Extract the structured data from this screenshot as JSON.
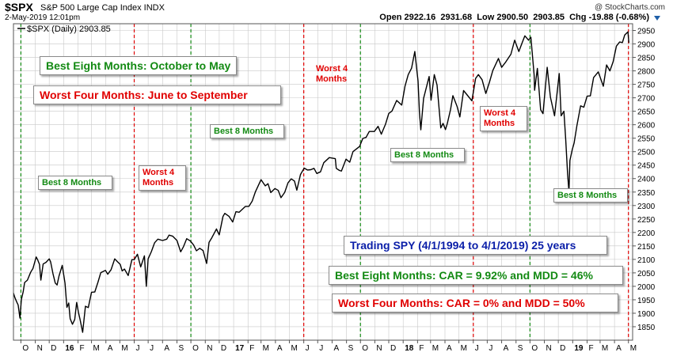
{
  "header": {
    "symbol": "$SPX",
    "subtitle": "S&P 500 Large Cap Index  INDX",
    "datetime": "2-May-2019 12:01pm",
    "copyright": "@ StockCharts.com",
    "quote": {
      "open_label": "Open",
      "open": "2922.16",
      "high": "2931.68",
      "low_label": "Low",
      "low": "2900.50",
      "last": "2903.85",
      "chg_label": "Chg",
      "chg": "-19.88 (-0.68%)"
    }
  },
  "legend": {
    "text": "$SPX (Daily) 2903.85"
  },
  "annotations": {
    "best_eight_title": "Best Eight Months: October to May",
    "worst_four_title": "Worst Four Months: June to September",
    "best8_1": "Best 8 Months",
    "worst4_1_line1": "Worst 4",
    "worst4_1_line2": "Months",
    "best8_2": "Best 8 Months",
    "worst4_2_line1": "Worst 4",
    "worst4_2_line2": "Months",
    "best8_3": "Best 8 Months",
    "worst4_3_line1": "Worst 4",
    "worst4_3_line2": "Months",
    "best8_4": "Best 8 Months",
    "trading_spy": "Trading SPY (4/1/1994 to 4/1/2019) 25 years",
    "best_stats": "Best Eight Months: CAR = 9.92% and MDD = 46%",
    "worst_stats": "Worst Four Months: CAR = 0% and MDD = 50%"
  },
  "colors": {
    "green": "#138a13",
    "red": "#e00000",
    "blue": "#0a1ea8",
    "line": "#000000",
    "grid": "#c8c8c8"
  },
  "chart_data": {
    "type": "line",
    "title": "$SPX (Daily) 2903.85",
    "ylim": [
      1800,
      2975
    ],
    "y_ticks": [
      1850,
      1900,
      1950,
      2000,
      2050,
      2100,
      2150,
      2200,
      2250,
      2300,
      2350,
      2400,
      2450,
      2500,
      2550,
      2600,
      2650,
      2700,
      2750,
      2800,
      2850,
      2900,
      2950
    ],
    "x_start": "2015-09-15",
    "x_end": "2019-05-10",
    "x_ticks": [
      {
        "date": "2015-10-01",
        "label": "O"
      },
      {
        "date": "2015-11-01",
        "label": "N"
      },
      {
        "date": "2015-12-01",
        "label": "D"
      },
      {
        "date": "2016-01-01",
        "label": "16"
      },
      {
        "date": "2016-02-01",
        "label": "F"
      },
      {
        "date": "2016-03-01",
        "label": "M"
      },
      {
        "date": "2016-04-01",
        "label": "A"
      },
      {
        "date": "2016-05-01",
        "label": "M"
      },
      {
        "date": "2016-06-01",
        "label": "J"
      },
      {
        "date": "2016-07-01",
        "label": "J"
      },
      {
        "date": "2016-08-01",
        "label": "A"
      },
      {
        "date": "2016-09-01",
        "label": "S"
      },
      {
        "date": "2016-10-01",
        "label": "O"
      },
      {
        "date": "2016-11-01",
        "label": "N"
      },
      {
        "date": "2016-12-01",
        "label": "D"
      },
      {
        "date": "2017-01-01",
        "label": "17"
      },
      {
        "date": "2017-02-01",
        "label": "F"
      },
      {
        "date": "2017-03-01",
        "label": "M"
      },
      {
        "date": "2017-04-01",
        "label": "A"
      },
      {
        "date": "2017-05-01",
        "label": "M"
      },
      {
        "date": "2017-06-01",
        "label": "J"
      },
      {
        "date": "2017-07-01",
        "label": "J"
      },
      {
        "date": "2017-08-01",
        "label": "A"
      },
      {
        "date": "2017-09-01",
        "label": "S"
      },
      {
        "date": "2017-10-01",
        "label": "O"
      },
      {
        "date": "2017-11-01",
        "label": "N"
      },
      {
        "date": "2017-12-01",
        "label": "D"
      },
      {
        "date": "2018-01-01",
        "label": "18"
      },
      {
        "date": "2018-02-01",
        "label": "F"
      },
      {
        "date": "2018-03-01",
        "label": "M"
      },
      {
        "date": "2018-04-01",
        "label": "A"
      },
      {
        "date": "2018-05-01",
        "label": "M"
      },
      {
        "date": "2018-06-01",
        "label": "J"
      },
      {
        "date": "2018-07-01",
        "label": "J"
      },
      {
        "date": "2018-08-01",
        "label": "A"
      },
      {
        "date": "2018-09-01",
        "label": "S"
      },
      {
        "date": "2018-10-01",
        "label": "O"
      },
      {
        "date": "2018-11-01",
        "label": "N"
      },
      {
        "date": "2018-12-01",
        "label": "D"
      },
      {
        "date": "2019-01-01",
        "label": "19"
      },
      {
        "date": "2019-02-01",
        "label": "F"
      },
      {
        "date": "2019-03-01",
        "label": "M"
      },
      {
        "date": "2019-04-01",
        "label": "A"
      },
      {
        "date": "2019-05-01",
        "label": "M"
      }
    ],
    "bold_tick_labels": [
      "16",
      "17",
      "18",
      "19"
    ],
    "season_lines": [
      {
        "date": "2015-10-01",
        "color": "green"
      },
      {
        "date": "2016-06-01",
        "color": "red"
      },
      {
        "date": "2016-10-01",
        "color": "green"
      },
      {
        "date": "2017-06-01",
        "color": "red"
      },
      {
        "date": "2017-10-01",
        "color": "green"
      },
      {
        "date": "2018-06-01",
        "color": "red"
      },
      {
        "date": "2018-10-01",
        "color": "green"
      },
      {
        "date": "2019-05-01",
        "color": "red"
      }
    ],
    "series": [
      {
        "name": "$SPX (Daily)",
        "points": [
          [
            "2015-09-15",
            1975
          ],
          [
            "2015-09-18",
            1958
          ],
          [
            "2015-09-22",
            1942
          ],
          [
            "2015-09-25",
            1931
          ],
          [
            "2015-09-29",
            1882
          ],
          [
            "2015-10-02",
            1951
          ],
          [
            "2015-10-06",
            1980
          ],
          [
            "2015-10-09",
            2014
          ],
          [
            "2015-10-15",
            2023
          ],
          [
            "2015-10-22",
            2052
          ],
          [
            "2015-10-27",
            2066
          ],
          [
            "2015-11-03",
            2109
          ],
          [
            "2015-11-06",
            2099
          ],
          [
            "2015-11-10",
            2081
          ],
          [
            "2015-11-13",
            2023
          ],
          [
            "2015-11-18",
            2083
          ],
          [
            "2015-11-24",
            2089
          ],
          [
            "2015-12-01",
            2102
          ],
          [
            "2015-12-04",
            2091
          ],
          [
            "2015-12-09",
            2047
          ],
          [
            "2015-12-14",
            2012
          ],
          [
            "2015-12-18",
            2005
          ],
          [
            "2015-12-22",
            2038
          ],
          [
            "2015-12-29",
            2078
          ],
          [
            "2016-01-04",
            2012
          ],
          [
            "2016-01-08",
            1922
          ],
          [
            "2016-01-12",
            1938
          ],
          [
            "2016-01-15",
            1880
          ],
          [
            "2016-01-20",
            1859
          ],
          [
            "2016-01-25",
            1877
          ],
          [
            "2016-01-29",
            1940
          ],
          [
            "2016-02-02",
            1903
          ],
          [
            "2016-02-05",
            1880
          ],
          [
            "2016-02-11",
            1829
          ],
          [
            "2016-02-17",
            1926
          ],
          [
            "2016-02-23",
            1921
          ],
          [
            "2016-03-01",
            1978
          ],
          [
            "2016-03-08",
            1979
          ],
          [
            "2016-03-15",
            2016
          ],
          [
            "2016-03-21",
            2051
          ],
          [
            "2016-03-31",
            2059
          ],
          [
            "2016-04-05",
            2045
          ],
          [
            "2016-04-12",
            2061
          ],
          [
            "2016-04-20",
            2102
          ],
          [
            "2016-04-26",
            2091
          ],
          [
            "2016-05-02",
            2081
          ],
          [
            "2016-05-06",
            2057
          ],
          [
            "2016-05-11",
            2064
          ],
          [
            "2016-05-19",
            2040
          ],
          [
            "2016-05-27",
            2099
          ],
          [
            "2016-06-01",
            2099
          ],
          [
            "2016-06-08",
            2119
          ],
          [
            "2016-06-15",
            2072
          ],
          [
            "2016-06-23",
            2113
          ],
          [
            "2016-06-27",
            2000
          ],
          [
            "2016-07-01",
            2102
          ],
          [
            "2016-07-08",
            2129
          ],
          [
            "2016-07-15",
            2162
          ],
          [
            "2016-07-22",
            2175
          ],
          [
            "2016-08-01",
            2170
          ],
          [
            "2016-08-10",
            2175
          ],
          [
            "2016-08-15",
            2190
          ],
          [
            "2016-08-23",
            2186
          ],
          [
            "2016-09-01",
            2170
          ],
          [
            "2016-09-09",
            2128
          ],
          [
            "2016-09-15",
            2147
          ],
          [
            "2016-09-22",
            2177
          ],
          [
            "2016-09-30",
            2168
          ],
          [
            "2016-10-07",
            2153
          ],
          [
            "2016-10-13",
            2132
          ],
          [
            "2016-10-20",
            2141
          ],
          [
            "2016-10-27",
            2133
          ],
          [
            "2016-11-04",
            2085
          ],
          [
            "2016-11-09",
            2163
          ],
          [
            "2016-11-15",
            2180
          ],
          [
            "2016-11-25",
            2213
          ],
          [
            "2016-12-01",
            2191
          ],
          [
            "2016-12-09",
            2259
          ],
          [
            "2016-12-13",
            2271
          ],
          [
            "2016-12-22",
            2260
          ],
          [
            "2016-12-30",
            2239
          ],
          [
            "2017-01-06",
            2277
          ],
          [
            "2017-01-13",
            2275
          ],
          [
            "2017-01-26",
            2296
          ],
          [
            "2017-02-03",
            2297
          ],
          [
            "2017-02-10",
            2316
          ],
          [
            "2017-02-17",
            2351
          ],
          [
            "2017-03-01",
            2396
          ],
          [
            "2017-03-10",
            2373
          ],
          [
            "2017-03-16",
            2381
          ],
          [
            "2017-03-22",
            2348
          ],
          [
            "2017-03-31",
            2363
          ],
          [
            "2017-04-07",
            2356
          ],
          [
            "2017-04-13",
            2329
          ],
          [
            "2017-04-21",
            2349
          ],
          [
            "2017-04-28",
            2384
          ],
          [
            "2017-05-05",
            2399
          ],
          [
            "2017-05-12",
            2391
          ],
          [
            "2017-05-17",
            2357
          ],
          [
            "2017-05-25",
            2415
          ],
          [
            "2017-06-02",
            2439
          ],
          [
            "2017-06-09",
            2432
          ],
          [
            "2017-06-16",
            2433
          ],
          [
            "2017-06-23",
            2438
          ],
          [
            "2017-06-29",
            2419
          ],
          [
            "2017-07-07",
            2425
          ],
          [
            "2017-07-14",
            2459
          ],
          [
            "2017-07-26",
            2478
          ],
          [
            "2017-08-08",
            2474
          ],
          [
            "2017-08-10",
            2438
          ],
          [
            "2017-08-17",
            2430
          ],
          [
            "2017-08-21",
            2428
          ],
          [
            "2017-08-31",
            2472
          ],
          [
            "2017-09-08",
            2461
          ],
          [
            "2017-09-15",
            2500
          ],
          [
            "2017-09-29",
            2519
          ],
          [
            "2017-10-06",
            2549
          ],
          [
            "2017-10-13",
            2553
          ],
          [
            "2017-10-20",
            2575
          ],
          [
            "2017-10-31",
            2575
          ],
          [
            "2017-11-08",
            2594
          ],
          [
            "2017-11-15",
            2565
          ],
          [
            "2017-11-24",
            2602
          ],
          [
            "2017-12-01",
            2642
          ],
          [
            "2017-12-08",
            2651
          ],
          [
            "2017-12-18",
            2690
          ],
          [
            "2017-12-29",
            2673
          ],
          [
            "2018-01-05",
            2743
          ],
          [
            "2018-01-12",
            2786
          ],
          [
            "2018-01-19",
            2810
          ],
          [
            "2018-01-26",
            2872
          ],
          [
            "2018-02-02",
            2762
          ],
          [
            "2018-02-05",
            2648
          ],
          [
            "2018-02-08",
            2581
          ],
          [
            "2018-02-14",
            2698
          ],
          [
            "2018-02-26",
            2779
          ],
          [
            "2018-03-02",
            2691
          ],
          [
            "2018-03-09",
            2786
          ],
          [
            "2018-03-15",
            2747
          ],
          [
            "2018-03-23",
            2588
          ],
          [
            "2018-03-28",
            2605
          ],
          [
            "2018-04-02",
            2582
          ],
          [
            "2018-04-06",
            2604
          ],
          [
            "2018-04-13",
            2656
          ],
          [
            "2018-04-18",
            2708
          ],
          [
            "2018-04-27",
            2669
          ],
          [
            "2018-05-03",
            2629
          ],
          [
            "2018-05-11",
            2727
          ],
          [
            "2018-05-18",
            2712
          ],
          [
            "2018-05-29",
            2689
          ],
          [
            "2018-06-06",
            2772
          ],
          [
            "2018-06-12",
            2786
          ],
          [
            "2018-06-20",
            2767
          ],
          [
            "2018-06-28",
            2716
          ],
          [
            "2018-07-06",
            2759
          ],
          [
            "2018-07-13",
            2801
          ],
          [
            "2018-07-25",
            2846
          ],
          [
            "2018-08-01",
            2813
          ],
          [
            "2018-08-10",
            2833
          ],
          [
            "2018-08-21",
            2862
          ],
          [
            "2018-08-29",
            2914
          ],
          [
            "2018-09-07",
            2872
          ],
          [
            "2018-09-14",
            2904
          ],
          [
            "2018-09-20",
            2930
          ],
          [
            "2018-09-28",
            2914
          ],
          [
            "2018-10-03",
            2925
          ],
          [
            "2018-10-10",
            2785
          ],
          [
            "2018-10-11",
            2728
          ],
          [
            "2018-10-17",
            2809
          ],
          [
            "2018-10-24",
            2656
          ],
          [
            "2018-10-29",
            2641
          ],
          [
            "2018-11-07",
            2813
          ],
          [
            "2018-11-14",
            2702
          ],
          [
            "2018-11-23",
            2633
          ],
          [
            "2018-12-03",
            2790
          ],
          [
            "2018-12-07",
            2633
          ],
          [
            "2018-12-13",
            2650
          ],
          [
            "2018-12-17",
            2545
          ],
          [
            "2018-12-21",
            2416
          ],
          [
            "2018-12-24",
            2351
          ],
          [
            "2018-12-26",
            2467
          ],
          [
            "2018-12-31",
            2507
          ],
          [
            "2019-01-04",
            2532
          ],
          [
            "2019-01-10",
            2596
          ],
          [
            "2019-01-18",
            2670
          ],
          [
            "2019-01-25",
            2665
          ],
          [
            "2019-02-01",
            2706
          ],
          [
            "2019-02-08",
            2707
          ],
          [
            "2019-02-15",
            2775
          ],
          [
            "2019-02-25",
            2796
          ],
          [
            "2019-03-08",
            2743
          ],
          [
            "2019-03-15",
            2822
          ],
          [
            "2019-03-22",
            2800
          ],
          [
            "2019-03-29",
            2834
          ],
          [
            "2019-04-05",
            2892
          ],
          [
            "2019-04-12",
            2907
          ],
          [
            "2019-04-18",
            2905
          ],
          [
            "2019-04-23",
            2933
          ],
          [
            "2019-04-30",
            2945
          ],
          [
            "2019-05-01",
            2923
          ],
          [
            "2019-05-02",
            2904
          ]
        ]
      }
    ]
  }
}
